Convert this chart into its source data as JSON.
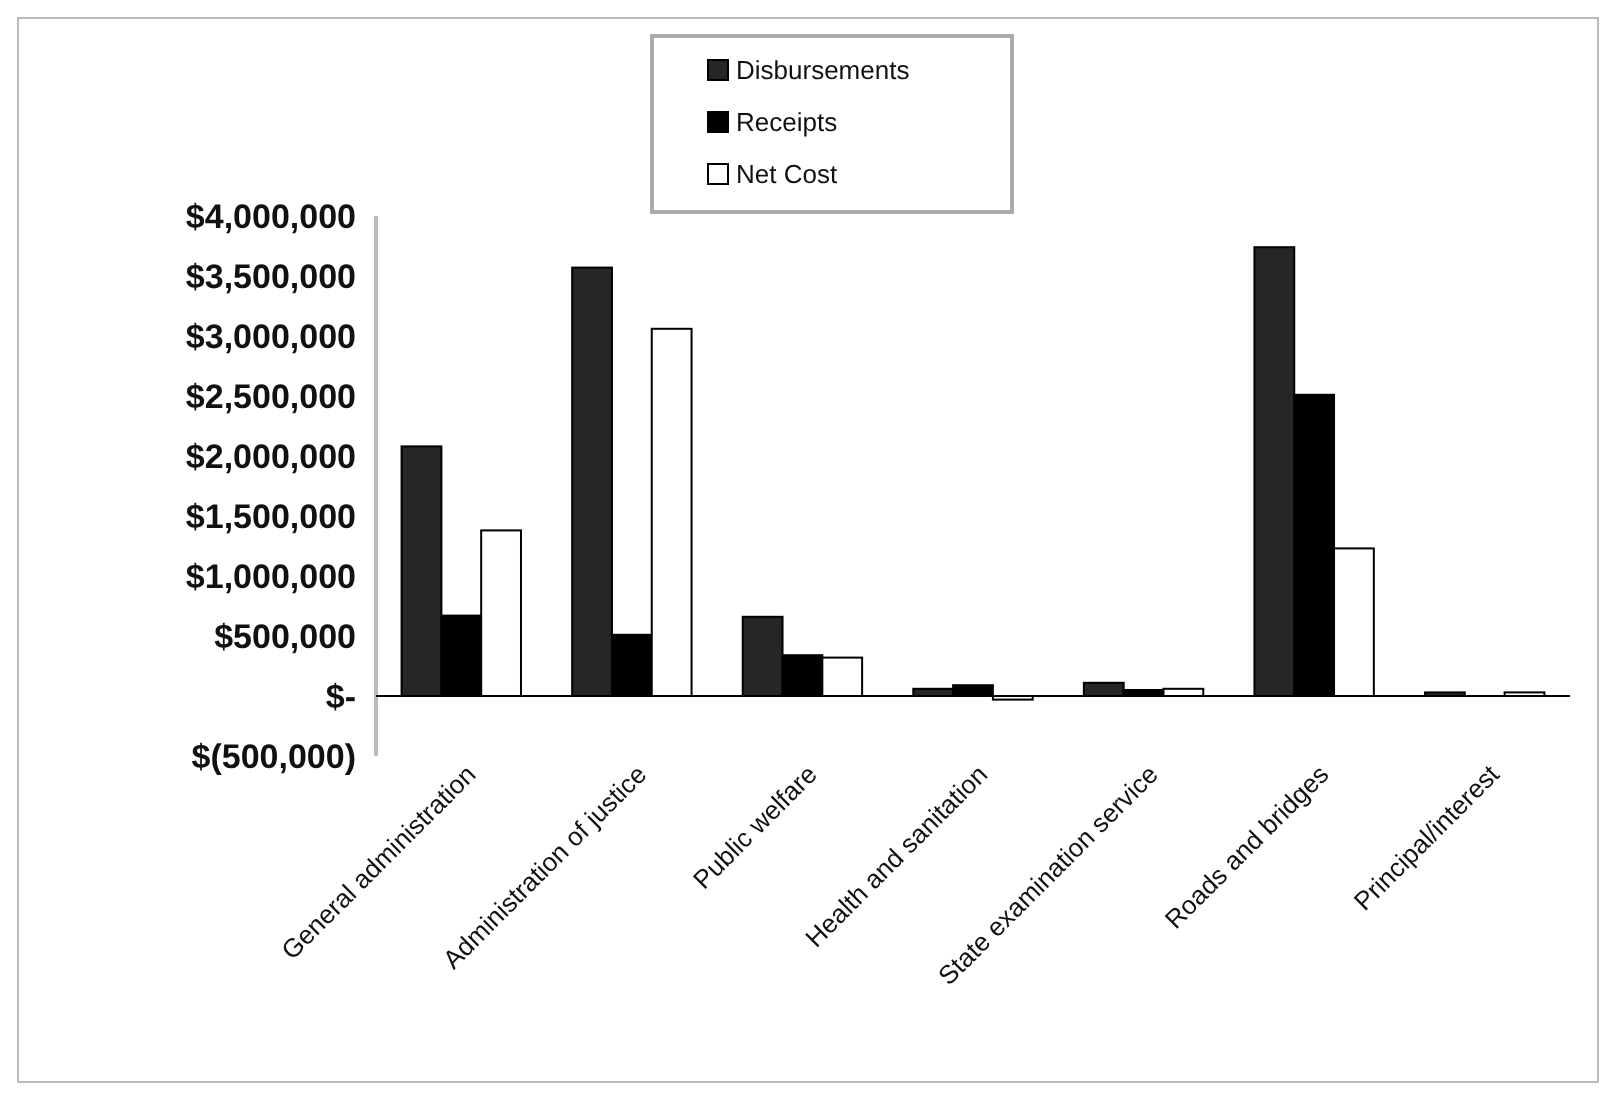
{
  "chart_data": {
    "type": "bar",
    "categories": [
      "General administration",
      "Administration of justice",
      "Public welfare",
      "Health and sanitation",
      "State examination service",
      "Roads and bridges",
      "Principal/interest"
    ],
    "series": [
      {
        "name": "Disbursements",
        "color": "#262626",
        "values": [
          2080000,
          3570000,
          660000,
          60000,
          110000,
          3740000,
          30000
        ]
      },
      {
        "name": "Receipts",
        "color": "#000000",
        "values": [
          670000,
          510000,
          340000,
          90000,
          50000,
          2510000,
          null
        ]
      },
      {
        "name": "Net Cost",
        "color": "#ffffff",
        "values": [
          1380000,
          3060000,
          320000,
          -30000,
          60000,
          1230000,
          30000
        ]
      }
    ],
    "ylim": [
      -500000,
      4000000
    ],
    "yticks": [
      {
        "value": -500000,
        "label": "$(500,000)"
      },
      {
        "value": 0,
        "label": "$-"
      },
      {
        "value": 500000,
        "label": "$500,000"
      },
      {
        "value": 1000000,
        "label": "$1,000,000"
      },
      {
        "value": 1500000,
        "label": "$1,500,000"
      },
      {
        "value": 2000000,
        "label": "$2,000,000"
      },
      {
        "value": 2500000,
        "label": "$2,500,000"
      },
      {
        "value": 3000000,
        "label": "$3,000,000"
      },
      {
        "value": 3500000,
        "label": "$3,500,000"
      },
      {
        "value": 4000000,
        "label": "$4,000,000"
      }
    ],
    "legend": "top",
    "grid": false
  }
}
